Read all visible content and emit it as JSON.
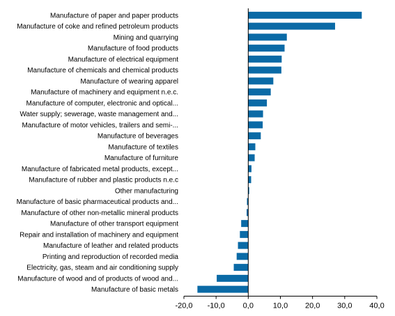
{
  "chart_data": {
    "type": "bar",
    "orientation": "horizontal",
    "title": "",
    "xlabel": "",
    "ylabel": "",
    "xlim": [
      -20,
      40
    ],
    "ticks": [
      -20,
      -10,
      0,
      10,
      20,
      30,
      40
    ],
    "tick_labels": [
      "-20,0",
      "-10,0",
      "0,0",
      "10,0",
      "20,0",
      "30,0",
      "40,0"
    ],
    "grid": false,
    "legend": "none",
    "bar_color": "#0a6aa6",
    "categories": [
      "Manufacture of paper and paper products",
      "Manufacture of coke and refined petroleum products",
      "Mining and quarrying",
      "Manufacture of food products",
      "Manufacture of electrical equipment",
      "Manufacture of chemicals and chemical products",
      "Manufacture of wearing apparel",
      "Manufacture of machinery and equipment n.e.c.",
      "Manufacture of computer, electronic and optical...",
      "Water supply; sewerage, waste management and...",
      "Manufacture of motor vehicles, trailers and semi-...",
      "Manufacture of beverages",
      "Manufacture of textiles",
      "Manufacture of furniture",
      "Manufacture of fabricated metal products, except...",
      "Manufacture of rubber and plastic products n.e.c",
      "Other manufacturing",
      "Manufacture of basic pharmaceutical products and...",
      "Manufacture of other non-metallic mineral products",
      "Manufacture of other transport equipment",
      "Repair and installation of machinery and equipment",
      "Manufacture of leather and related products",
      "Printing and reproduction of recorded media",
      "Electricity, gas, steam and air conditioning supply",
      "Manufacture of wood and of products of wood and...",
      "Manufacture of basic metals"
    ],
    "values": [
      35.3,
      27.0,
      12.0,
      11.3,
      10.4,
      10.3,
      7.8,
      7.0,
      5.8,
      4.6,
      4.5,
      3.9,
      2.2,
      2.0,
      1.0,
      0.9,
      0.3,
      -0.4,
      -0.5,
      -2.2,
      -2.6,
      -3.2,
      -3.6,
      -4.5,
      -9.8,
      -15.8
    ]
  }
}
